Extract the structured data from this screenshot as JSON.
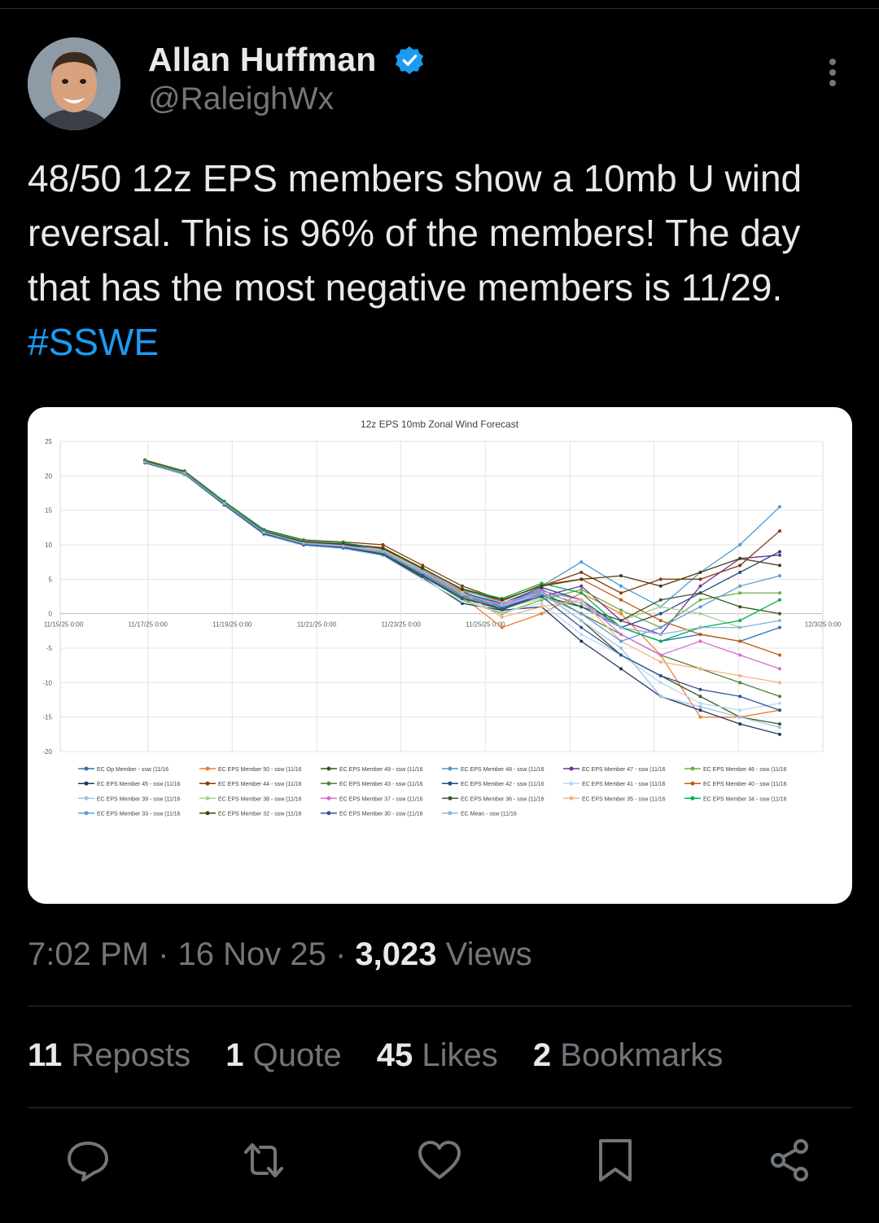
{
  "author": {
    "name": "Allan Huffman",
    "handle": "@RaleighWx"
  },
  "tweet": {
    "text": "48/50 12z EPS members show a 10mb U wind reversal. This is 96% of the members! The day that has the most negative members is 11/29.",
    "hashtag": "#SSWE"
  },
  "meta": {
    "time": "7:02 PM",
    "date": "16 Nov 25",
    "views_count": "3,023",
    "views_label": "Views"
  },
  "stats": [
    {
      "count": "11",
      "label": "Reposts"
    },
    {
      "count": "1",
      "label": "Quote"
    },
    {
      "count": "45",
      "label": "Likes"
    },
    {
      "count": "2",
      "label": "Bookmarks"
    }
  ],
  "actions": [
    "reply-icon",
    "repost-icon",
    "like-icon",
    "bookmark-icon",
    "share-icon"
  ],
  "colors": {
    "accent": "#1d9bf0",
    "muted": "#71767b",
    "text": "#e7e9ea",
    "background": "#000000"
  },
  "chart_data": {
    "type": "line",
    "title": "12z EPS 10mb Zonal Wind Forecast",
    "ylim": [
      -20,
      25
    ],
    "yticks": [
      25,
      20,
      15,
      10,
      5,
      0,
      -5,
      -10,
      -15,
      -20
    ],
    "xtick_labels": [
      "11/15/25 0:00",
      "11/17/25 0:00",
      "11/19/25 0:00",
      "11/21/25 0:00",
      "11/23/25 0:00",
      "11/25/25 0:00",
      "",
      "",
      "",
      "12/3/25 0:00"
    ],
    "grid": true,
    "legend_position": "bottom",
    "x": [
      "11/16",
      "11/17",
      "11/18",
      "11/19",
      "11/20",
      "11/21",
      "11/22",
      "11/23",
      "11/24",
      "11/25",
      "11/26",
      "11/27",
      "11/28",
      "11/29",
      "11/30",
      "12/1",
      "12/2"
    ],
    "series": [
      {
        "name": "EC Op Member - ssw (11/16",
        "color": "#2e75b6",
        "values": [
          22,
          20.5,
          16,
          12,
          10.5,
          10,
          9.5,
          6.5,
          3,
          1.5,
          3.5,
          1,
          -2,
          -4,
          -3,
          -4,
          -2
        ]
      },
      {
        "name": "EC EPS Member 50 - ssw (11/16",
        "color": "#ed7d31",
        "values": [
          22,
          20.3,
          16,
          11.8,
          10.3,
          9.7,
          9,
          6,
          2.5,
          -2,
          0,
          3,
          0,
          -6,
          -15,
          -15,
          -14
        ]
      },
      {
        "name": "EC EPS Member 49 - ssw (11/16",
        "color": "#375623",
        "values": [
          22.2,
          20.4,
          16.1,
          11.9,
          10.4,
          9.8,
          8.8,
          5.8,
          2.8,
          0.5,
          3,
          -1,
          -6,
          -9,
          -12,
          -15,
          -16
        ]
      },
      {
        "name": "EC EPS Member 48 - ssw (11/16",
        "color": "#4a9bd1",
        "values": [
          22,
          20.6,
          16.2,
          12,
          10.2,
          10,
          9.2,
          6.2,
          3.2,
          2,
          4,
          7.5,
          4,
          1,
          6,
          10,
          15.5
        ]
      },
      {
        "name": "EC EPS Member 47 - ssw (11/16",
        "color": "#7030a0",
        "values": [
          22.1,
          20.2,
          15.9,
          12.1,
          10.5,
          9.9,
          9.5,
          6.3,
          3.1,
          1,
          2.5,
          4,
          -1,
          -3,
          4,
          8,
          8.5
        ]
      },
      {
        "name": "EC EPS Member 46 - ssw (11/16",
        "color": "#70ad47",
        "values": [
          21.9,
          20.5,
          16,
          11.7,
          10.1,
          9.6,
          8.7,
          5.5,
          2,
          0,
          2,
          3.5,
          0.5,
          -2,
          2,
          3,
          3
        ]
      },
      {
        "name": "EC EPS Member 45 - ssw (11/16",
        "color": "#203864",
        "values": [
          22,
          20.4,
          15.8,
          11.5,
          10,
          9.5,
          8.5,
          5.2,
          1.5,
          0.5,
          1,
          -4,
          -8,
          -12,
          -14,
          -16,
          -17.5
        ]
      },
      {
        "name": "EC EPS Member 44 - ssw (11/16",
        "color": "#843c0c",
        "values": [
          22.3,
          20.7,
          16.3,
          12.2,
          10.7,
          10.4,
          10,
          7,
          4,
          2,
          4,
          6,
          3,
          5,
          5,
          7,
          12
        ]
      },
      {
        "name": "EC EPS Member 43 - ssw (11/16",
        "color": "#548235",
        "values": [
          22,
          20.3,
          16,
          11.6,
          10.2,
          9.8,
          8.9,
          5.9,
          2.6,
          1.2,
          3.2,
          0,
          -3,
          -6,
          -8,
          -10,
          -12
        ]
      },
      {
        "name": "EC EPS Member 42 - ssw (11/16",
        "color": "#1f4e79",
        "values": [
          22.1,
          20.5,
          16.1,
          11.8,
          10.3,
          10,
          9.1,
          6.1,
          3,
          1.5,
          3.8,
          2,
          -2,
          0,
          3,
          6,
          9
        ]
      },
      {
        "name": "EC EPS Member 41 - ssw (11/16",
        "color": "#bdd7ee",
        "values": [
          21.8,
          20.1,
          15.7,
          11.4,
          9.9,
          9.4,
          8.4,
          5,
          1.8,
          0.2,
          1.5,
          -3,
          -6,
          -10,
          -13,
          -14,
          -13
        ]
      },
      {
        "name": "EC EPS Member 40 - ssw (11/16",
        "color": "#c55a11",
        "values": [
          22,
          20.4,
          16,
          11.9,
          10.4,
          10.1,
          9.6,
          6.6,
          3.3,
          1.8,
          4.2,
          5,
          2,
          -1,
          -3,
          -4,
          -6
        ]
      },
      {
        "name": "EC EPS Member 39 - ssw (11/16",
        "color": "#9dc3e6",
        "values": [
          22.2,
          20.6,
          16.2,
          12,
          10.5,
          10.2,
          9.3,
          6.4,
          3.4,
          1.6,
          3,
          -1,
          -5,
          -12,
          -13.5,
          -15,
          -16.5
        ]
      },
      {
        "name": "EC EPS Member 38 - ssw (11/16",
        "color": "#a9d18e",
        "values": [
          22,
          20.2,
          15.9,
          11.7,
          10.1,
          9.7,
          8.8,
          5.7,
          2.4,
          0.8,
          2.2,
          1,
          -1,
          1,
          0,
          -2,
          -1
        ]
      },
      {
        "name": "EC EPS Member 37 - ssw (11/16",
        "color": "#d26ecf",
        "values": [
          22.1,
          20.5,
          16.1,
          11.9,
          10.3,
          9.9,
          9,
          6,
          2.9,
          1.3,
          3.3,
          2,
          -3,
          -6,
          -4,
          -6,
          -8
        ]
      },
      {
        "name": "EC EPS Member 36 - ssw (11/16",
        "color": "#385723",
        "values": [
          21.9,
          20.3,
          15.8,
          11.6,
          10,
          9.6,
          8.6,
          5.4,
          2.2,
          0.6,
          2.6,
          1,
          -1,
          2,
          3,
          1,
          0
        ]
      },
      {
        "name": "EC EPS Member 35 - ssw (11/16",
        "color": "#f4b183",
        "values": [
          22,
          20.4,
          16,
          11.8,
          10.2,
          9.8,
          9.2,
          6.2,
          3.1,
          -0.5,
          1,
          2,
          -4,
          -7,
          -8,
          -9,
          -10
        ]
      },
      {
        "name": "EC EPS Member 34 - ssw (11/16",
        "color": "#00b050",
        "values": [
          22.2,
          20.6,
          16.3,
          12.1,
          10.6,
          10.3,
          9.4,
          6.5,
          3.6,
          2.2,
          4.4,
          3,
          -2,
          -4,
          -2,
          -1,
          2
        ]
      },
      {
        "name": "EC EPS Member 33 - ssw (11/16",
        "color": "#5b9bd5",
        "values": [
          22,
          20.4,
          16,
          11.7,
          10.1,
          9.7,
          8.9,
          5.8,
          2.5,
          1,
          2.8,
          0,
          -4,
          -2,
          1,
          4,
          5.5
        ]
      },
      {
        "name": "EC EPS Member 32 - ssw (11/16",
        "color": "#4d3b10",
        "values": [
          22.1,
          20.5,
          16.1,
          11.9,
          10.4,
          10.1,
          9.5,
          6.6,
          3.5,
          2,
          4,
          5,
          5.5,
          4,
          6,
          8,
          7
        ]
      },
      {
        "name": "EC EPS Member 30 - ssw (11/16",
        "color": "#2f5597",
        "values": [
          22,
          20.3,
          15.9,
          11.6,
          10,
          9.6,
          8.7,
          5.6,
          2.3,
          0.8,
          2.5,
          -2,
          -6,
          -9,
          -11,
          -12,
          -14
        ]
      },
      {
        "name": "EC Mean - ssw (11/16",
        "color": "#8fb4da",
        "values": [
          22,
          20.4,
          16,
          11.8,
          10.2,
          9.8,
          9,
          6,
          2.8,
          1.2,
          3,
          1.5,
          -2,
          -3,
          -2,
          -2,
          -1
        ]
      }
    ]
  }
}
